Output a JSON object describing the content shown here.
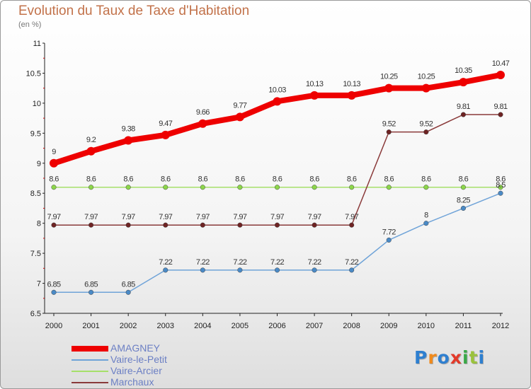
{
  "header": {
    "title": "Evolution du Taux de Taxe d'Habitation",
    "subtitle": "(en %)"
  },
  "logo": {
    "text": "Proxiti",
    "colors": [
      "#2e7fd0",
      "#f08a1c",
      "#2e7fd0",
      "#e23a2a",
      "#3aa847",
      "#9ac23c",
      "#2e7fd0"
    ]
  },
  "colors": {
    "title": "#c2724a",
    "axis_text": "#222222",
    "grid_tick": "#cc0000",
    "legend_text": "#6b7fc4"
  },
  "chart_data": {
    "type": "line",
    "title": "Evolution du Taux de Taxe d'Habitation",
    "ylabel": "(en %)",
    "xlabel": "",
    "x": [
      "2000",
      "2001",
      "2002",
      "2003",
      "2004",
      "2005",
      "2006",
      "2007",
      "2008",
      "2009",
      "2010",
      "2011",
      "2012"
    ],
    "ylim": [
      6.5,
      11
    ],
    "yticks": [
      "6.5",
      "7",
      "7.5",
      "8",
      "8.5",
      "9",
      "9.5",
      "10",
      "10.5",
      "11"
    ],
    "grid": false,
    "legend_position": "bottom-left",
    "series": [
      {
        "name": "AMAGNEY",
        "color": "#ee0000",
        "width": "thick",
        "values": [
          9,
          9.2,
          9.38,
          9.47,
          9.66,
          9.77,
          10.03,
          10.13,
          10.13,
          10.25,
          10.25,
          10.35,
          10.47
        ],
        "labels": [
          "9",
          "9.2",
          "9.38",
          "9.47",
          "9.66",
          "9.77",
          "10.03",
          "10.13",
          "10.13",
          "10.25",
          "10.25",
          "10.35",
          "10.47"
        ]
      },
      {
        "name": "Vaire-le-Petit",
        "color": "#6fa3d8",
        "marker": "#4a8ac6",
        "width": "thin",
        "values": [
          6.85,
          6.85,
          6.85,
          7.22,
          7.22,
          7.22,
          7.22,
          7.22,
          7.22,
          7.72,
          8,
          8.25,
          8.5
        ],
        "labels": [
          "6.85",
          "6.85",
          "6.85",
          "7.22",
          "7.22",
          "7.22",
          "7.22",
          "7.22",
          "7.22",
          "7.72",
          "8",
          "8.25",
          "8.5"
        ]
      },
      {
        "name": "Vaire-Arcier",
        "color": "#a6e06a",
        "marker": "#8cd64a",
        "width": "thin",
        "values": [
          8.6,
          8.6,
          8.6,
          8.6,
          8.6,
          8.6,
          8.6,
          8.6,
          8.6,
          8.6,
          8.6,
          8.6,
          8.6
        ],
        "labels": [
          "8.6",
          "8.6",
          "8.6",
          "8.6",
          "8.6",
          "8.6",
          "8.6",
          "8.6",
          "8.6",
          "8.6",
          "8.6",
          "8.6",
          "8.6"
        ]
      },
      {
        "name": "Marchaux",
        "color": "#8a3a3a",
        "marker": "#6e2323",
        "width": "thin",
        "values": [
          7.97,
          7.97,
          7.97,
          7.97,
          7.97,
          7.97,
          7.97,
          7.97,
          7.97,
          9.52,
          9.52,
          9.81,
          9.81
        ],
        "labels": [
          "7.97",
          "7.97",
          "7.97",
          "7.97",
          "7.97",
          "7.97",
          "7.97",
          "7.97",
          "7.97",
          "9.52",
          "9.52",
          "9.81",
          "9.81"
        ]
      }
    ]
  }
}
